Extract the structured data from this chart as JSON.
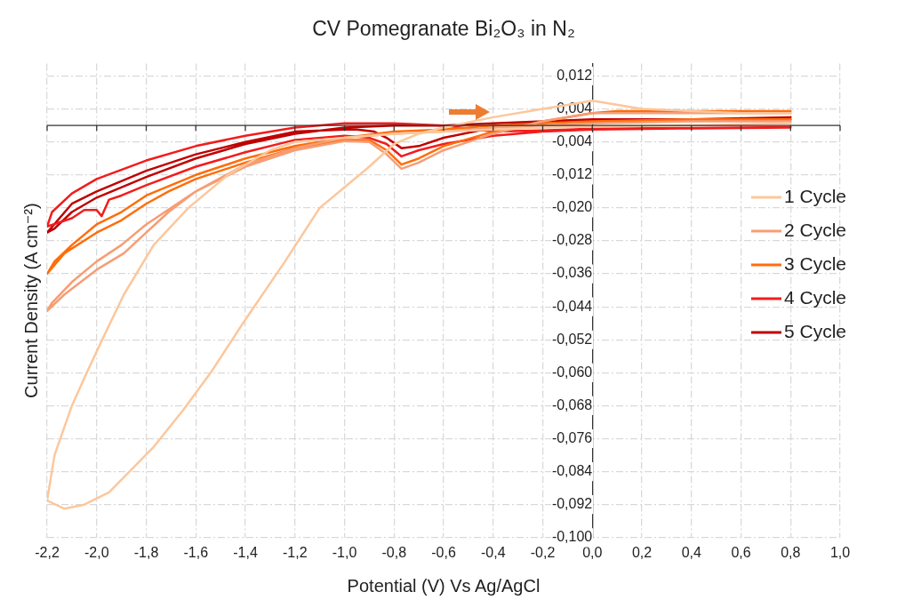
{
  "chart_data": {
    "type": "line",
    "title": "CV Pomegranate Bi₂O₃ in N₂",
    "xlabel": "Potential (V) Vs Ag/AgCl",
    "ylabel": "Current Density (A cm⁻²)",
    "xlim": [
      -2.2,
      1.0
    ],
    "xticks": [
      {
        "value": -2.2,
        "label": "-2,2"
      },
      {
        "value": -2.0,
        "label": "-2,0"
      },
      {
        "value": -1.8,
        "label": "-1,8"
      },
      {
        "value": -1.6,
        "label": "-1,6"
      },
      {
        "value": -1.4,
        "label": "-1,4"
      },
      {
        "value": -1.2,
        "label": "-1,2"
      },
      {
        "value": -1.0,
        "label": "-1,0"
      },
      {
        "value": -0.8,
        "label": "-0,8"
      },
      {
        "value": -0.6,
        "label": "-0,6"
      },
      {
        "value": -0.4,
        "label": "-0,4"
      },
      {
        "value": -0.2,
        "label": "-0,2"
      },
      {
        "value": 0,
        "label": "0,0"
      },
      {
        "value": 0.2,
        "label": "0,2"
      },
      {
        "value": 0.4,
        "label": "0,4"
      },
      {
        "value": 0.6,
        "label": "0,6"
      },
      {
        "value": 0.8,
        "label": "0,8"
      },
      {
        "value": 1.0,
        "label": "1,0"
      }
    ],
    "ylim": [
      -0.1,
      0.015
    ],
    "yticks": [
      {
        "value": 0.012,
        "label": "0,012"
      },
      {
        "value": 0.004,
        "label": "0,004"
      },
      {
        "value": -0.004,
        "label": "-0,004"
      },
      {
        "value": -0.012,
        "label": "-0,012"
      },
      {
        "value": -0.02,
        "label": "-0,020"
      },
      {
        "value": -0.028,
        "label": "-0,028"
      },
      {
        "value": -0.036,
        "label": "-0,036"
      },
      {
        "value": -0.044,
        "label": "-0,044"
      },
      {
        "value": -0.052,
        "label": "-0,052"
      },
      {
        "value": -0.06,
        "label": "-0,060"
      },
      {
        "value": -0.068,
        "label": "-0,068"
      },
      {
        "value": -0.076,
        "label": "-0,076"
      },
      {
        "value": -0.084,
        "label": "-0,084"
      },
      {
        "value": -0.092,
        "label": "-0,092"
      },
      {
        "value": -0.1,
        "label": "-0,100"
      }
    ],
    "grid": true,
    "legend": "right",
    "marker": "none",
    "line_style": "solid",
    "series": [
      {
        "name": "1 Cycle",
        "color": "#fcc79c",
        "x": [
          0.8,
          0.6,
          0.4,
          0.2,
          0.0,
          -0.1,
          -0.2,
          -0.4,
          -0.6,
          -0.7,
          -0.8,
          -0.9,
          -1.0,
          -1.1,
          -1.24,
          -1.41,
          -1.54,
          -1.65,
          -1.77,
          -1.95,
          -2.05,
          -2.13,
          -2.2,
          -2.17,
          -2.1,
          -2.04,
          -1.97,
          -1.89,
          -1.77,
          -1.63,
          -1.47,
          -1.3,
          -1.2,
          -1.0,
          -0.8,
          -0.6,
          -0.4,
          -0.2,
          0.0,
          0.4,
          0.8
        ],
        "values": [
          0.003,
          0.003,
          0.0035,
          0.004,
          0.006,
          0.005,
          0.004,
          0.002,
          -0.0005,
          -0.002,
          -0.0045,
          -0.01,
          -0.015,
          -0.02,
          -0.033,
          -0.048,
          -0.06,
          -0.069,
          -0.078,
          -0.089,
          -0.092,
          -0.093,
          -0.091,
          -0.08,
          -0.068,
          -0.06,
          -0.051,
          -0.041,
          -0.029,
          -0.02,
          -0.012,
          -0.006,
          -0.004,
          -0.003,
          -0.002,
          -0.0015,
          -0.001,
          -0.0005,
          -0.0003,
          0.0,
          0.0005
        ]
      },
      {
        "name": "2 Cycle",
        "color": "#f79d74",
        "x": [
          0.8,
          0.4,
          0.0,
          -0.2,
          -0.4,
          -0.6,
          -0.7,
          -0.77,
          -0.83,
          -0.9,
          -1.0,
          -1.2,
          -1.4,
          -1.6,
          -1.71,
          -1.8,
          -1.89,
          -2.0,
          -2.13,
          -2.2,
          -2.18,
          -2.1,
          -2.0,
          -1.9,
          -1.8,
          -1.6,
          -1.4,
          -1.2,
          -1.0,
          -0.8,
          -0.6,
          -0.4,
          -0.2,
          0.0,
          0.4,
          0.8
        ],
        "values": [
          0.003,
          0.003,
          0.003,
          0.001,
          -0.002,
          -0.006,
          -0.009,
          -0.0105,
          -0.007,
          -0.004,
          -0.0038,
          -0.006,
          -0.01,
          -0.016,
          -0.021,
          -0.026,
          -0.031,
          -0.035,
          -0.041,
          -0.045,
          -0.043,
          -0.038,
          -0.033,
          -0.029,
          -0.024,
          -0.016,
          -0.0095,
          -0.0055,
          -0.003,
          -0.002,
          -0.0015,
          -0.0005,
          0.0,
          0.0005,
          0.001,
          0.001
        ]
      },
      {
        "name": "3 Cycle",
        "color": "#ff6d0a",
        "x": [
          0.8,
          0.4,
          0.1,
          0.0,
          -0.2,
          -0.4,
          -0.6,
          -0.7,
          -0.77,
          -0.83,
          -0.9,
          -1.0,
          -1.2,
          -1.4,
          -1.6,
          -1.71,
          -1.8,
          -1.9,
          -2.0,
          -2.13,
          -2.2,
          -2.17,
          -2.1,
          -2.0,
          -1.9,
          -1.8,
          -1.6,
          -1.4,
          -1.2,
          -1.0,
          -0.8,
          -0.6,
          -0.4,
          -0.2,
          0.0,
          0.4,
          0.8
        ],
        "values": [
          0.0035,
          0.0035,
          0.0035,
          0.003,
          0.001,
          -0.0015,
          -0.005,
          -0.008,
          -0.0095,
          -0.006,
          -0.0035,
          -0.0035,
          -0.0055,
          -0.009,
          -0.013,
          -0.016,
          -0.019,
          -0.023,
          -0.026,
          -0.031,
          -0.036,
          -0.033,
          -0.029,
          -0.024,
          -0.021,
          -0.017,
          -0.012,
          -0.008,
          -0.005,
          -0.003,
          -0.0015,
          -0.001,
          0.0,
          0.0005,
          0.001,
          0.0015,
          0.0015
        ]
      },
      {
        "name": "4 Cycle",
        "color": "#f21c1c",
        "x": [
          0.8,
          0.4,
          0.0,
          -0.2,
          -0.4,
          -0.6,
          -0.7,
          -0.77,
          -0.83,
          -0.9,
          -1.0,
          -1.2,
          -1.4,
          -1.6,
          -1.8,
          -1.9,
          -1.95,
          -1.98,
          -2.0,
          -2.05,
          -2.1,
          -2.2,
          -2.18,
          -2.1,
          -2.0,
          -1.8,
          -1.6,
          -1.4,
          -1.2,
          -1.0,
          -0.8,
          -0.6,
          -0.4,
          -0.2,
          0.0,
          0.4,
          0.8
        ],
        "values": [
          -0.0005,
          -0.0007,
          -0.001,
          -0.0015,
          -0.0025,
          -0.0045,
          -0.006,
          -0.0075,
          -0.0045,
          -0.003,
          -0.0025,
          -0.0035,
          -0.0065,
          -0.01,
          -0.0145,
          -0.017,
          -0.018,
          -0.022,
          -0.0205,
          -0.0205,
          -0.0225,
          -0.0245,
          -0.021,
          -0.0165,
          -0.013,
          -0.0085,
          -0.005,
          -0.0025,
          -0.0005,
          0.0005,
          0.0005,
          0.0,
          -0.0015,
          -0.0012,
          -0.0008,
          -0.0006,
          -0.0004
        ]
      },
      {
        "name": "5 Cycle",
        "color": "#c00000",
        "x": [
          0.8,
          0.4,
          0.0,
          -0.2,
          -0.4,
          -0.6,
          -0.7,
          -0.77,
          -0.83,
          -0.88,
          -0.95,
          -1.0,
          -1.2,
          -1.4,
          -1.6,
          -1.8,
          -2.0,
          -2.1,
          -2.2,
          -2.17,
          -2.1,
          -2.0,
          -1.8,
          -1.6,
          -1.4,
          -1.2,
          -1.0,
          -0.8,
          -0.6,
          -0.4,
          -0.2,
          0.0,
          0.4,
          0.8
        ],
        "values": [
          0.002,
          0.0015,
          0.0015,
          0.001,
          -0.0005,
          -0.003,
          -0.005,
          -0.0055,
          -0.003,
          -0.0015,
          -0.001,
          -0.001,
          -0.0015,
          -0.004,
          -0.007,
          -0.011,
          -0.016,
          -0.019,
          -0.026,
          -0.025,
          -0.021,
          -0.0175,
          -0.0125,
          -0.008,
          -0.0045,
          -0.002,
          -0.0005,
          0.0,
          0.0,
          0.0005,
          0.001,
          0.001,
          0.0015,
          0.0015
        ]
      }
    ]
  }
}
